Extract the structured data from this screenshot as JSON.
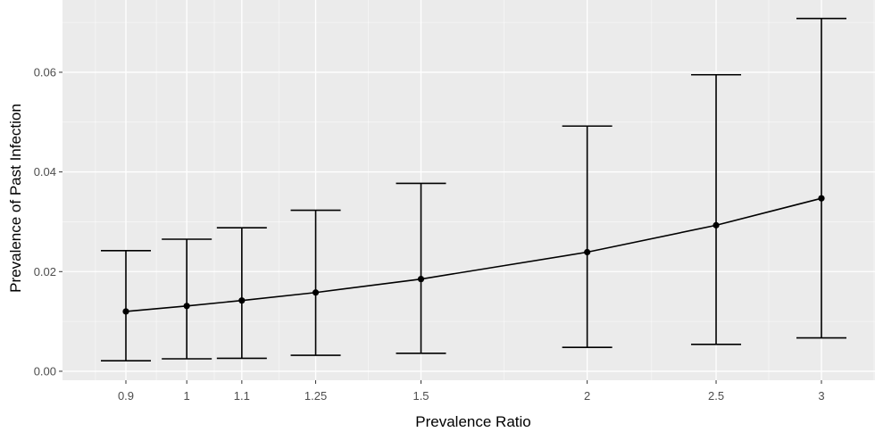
{
  "chart_data": {
    "type": "line",
    "title": "",
    "xlabel": "Prevalence Ratio",
    "ylabel": "Prevalence of Past Infection",
    "x_scale": "log",
    "x": [
      0.9,
      1,
      1.1,
      1.25,
      1.5,
      2,
      2.5,
      3
    ],
    "x_tick_labels": [
      "0.9",
      "1",
      "1.1",
      "1.25",
      "1.5",
      "2",
      "2.5",
      "3"
    ],
    "y_ticks": [
      0.0,
      0.02,
      0.04,
      0.06
    ],
    "y_tick_labels": [
      "0.00",
      "0.02",
      "0.04",
      "0.06"
    ],
    "ylim": [
      -0.0018,
      0.0745
    ],
    "series": [
      {
        "values": [
          0.012,
          0.0131,
          0.0142,
          0.0158,
          0.0185,
          0.0239,
          0.0293,
          0.0347
        ],
        "lower": [
          0.0021,
          0.0025,
          0.0026,
          0.0032,
          0.0036,
          0.0048,
          0.0054,
          0.0067
        ],
        "upper": [
          0.0242,
          0.0265,
          0.0288,
          0.0323,
          0.0377,
          0.0492,
          0.0595,
          0.0708
        ]
      }
    ],
    "grid": true,
    "legend": "none",
    "colors": {
      "panel": "#ebebeb",
      "grid": "#ffffff",
      "line": "#000000",
      "tick_text": "#4d4d4d",
      "axis_title": "#000000"
    }
  }
}
